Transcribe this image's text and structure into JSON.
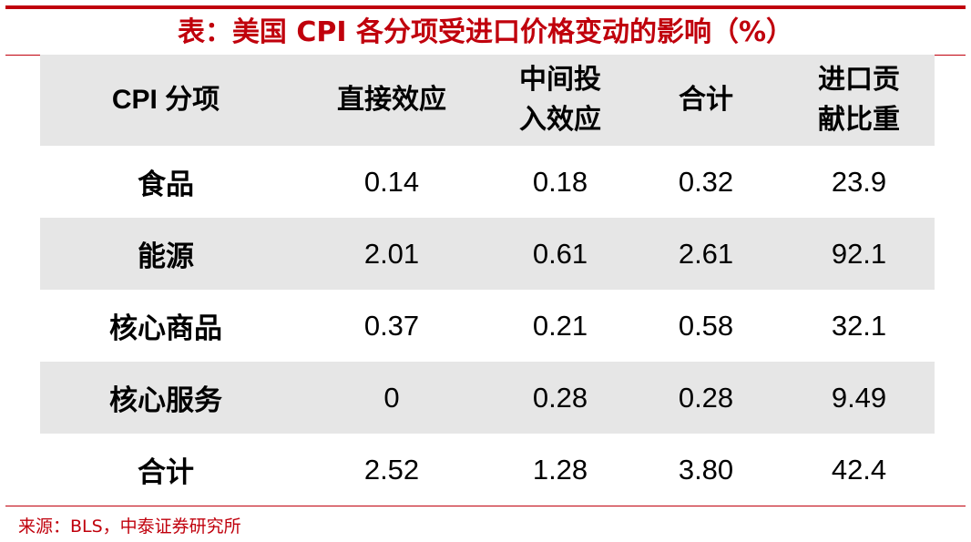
{
  "title": "表：美国 CPI 各分项受进口价格变动的影响（%）",
  "colors": {
    "accent": "#c0000c",
    "row_shade": "#e6e6e6"
  },
  "table": {
    "headers": [
      [
        "CPI 分项"
      ],
      [
        "直接效应"
      ],
      [
        "中间投",
        "入效应"
      ],
      [
        "合计"
      ],
      [
        "进口贡",
        "献比重"
      ]
    ],
    "rows": [
      {
        "category": "食品",
        "values": [
          "0.14",
          "0.18",
          "0.32",
          "23.9"
        ]
      },
      {
        "category": "能源",
        "values": [
          "2.01",
          "0.61",
          "2.61",
          "92.1"
        ]
      },
      {
        "category": "核心商品",
        "values": [
          "0.37",
          "0.21",
          "0.58",
          "32.1"
        ]
      },
      {
        "category": "核心服务",
        "values": [
          "0",
          "0.28",
          "0.28",
          "9.49"
        ]
      },
      {
        "category": "合计",
        "values": [
          "2.52",
          "1.28",
          "3.80",
          "42.4"
        ]
      }
    ]
  },
  "source": "来源：BLS，中泰证券研究所"
}
